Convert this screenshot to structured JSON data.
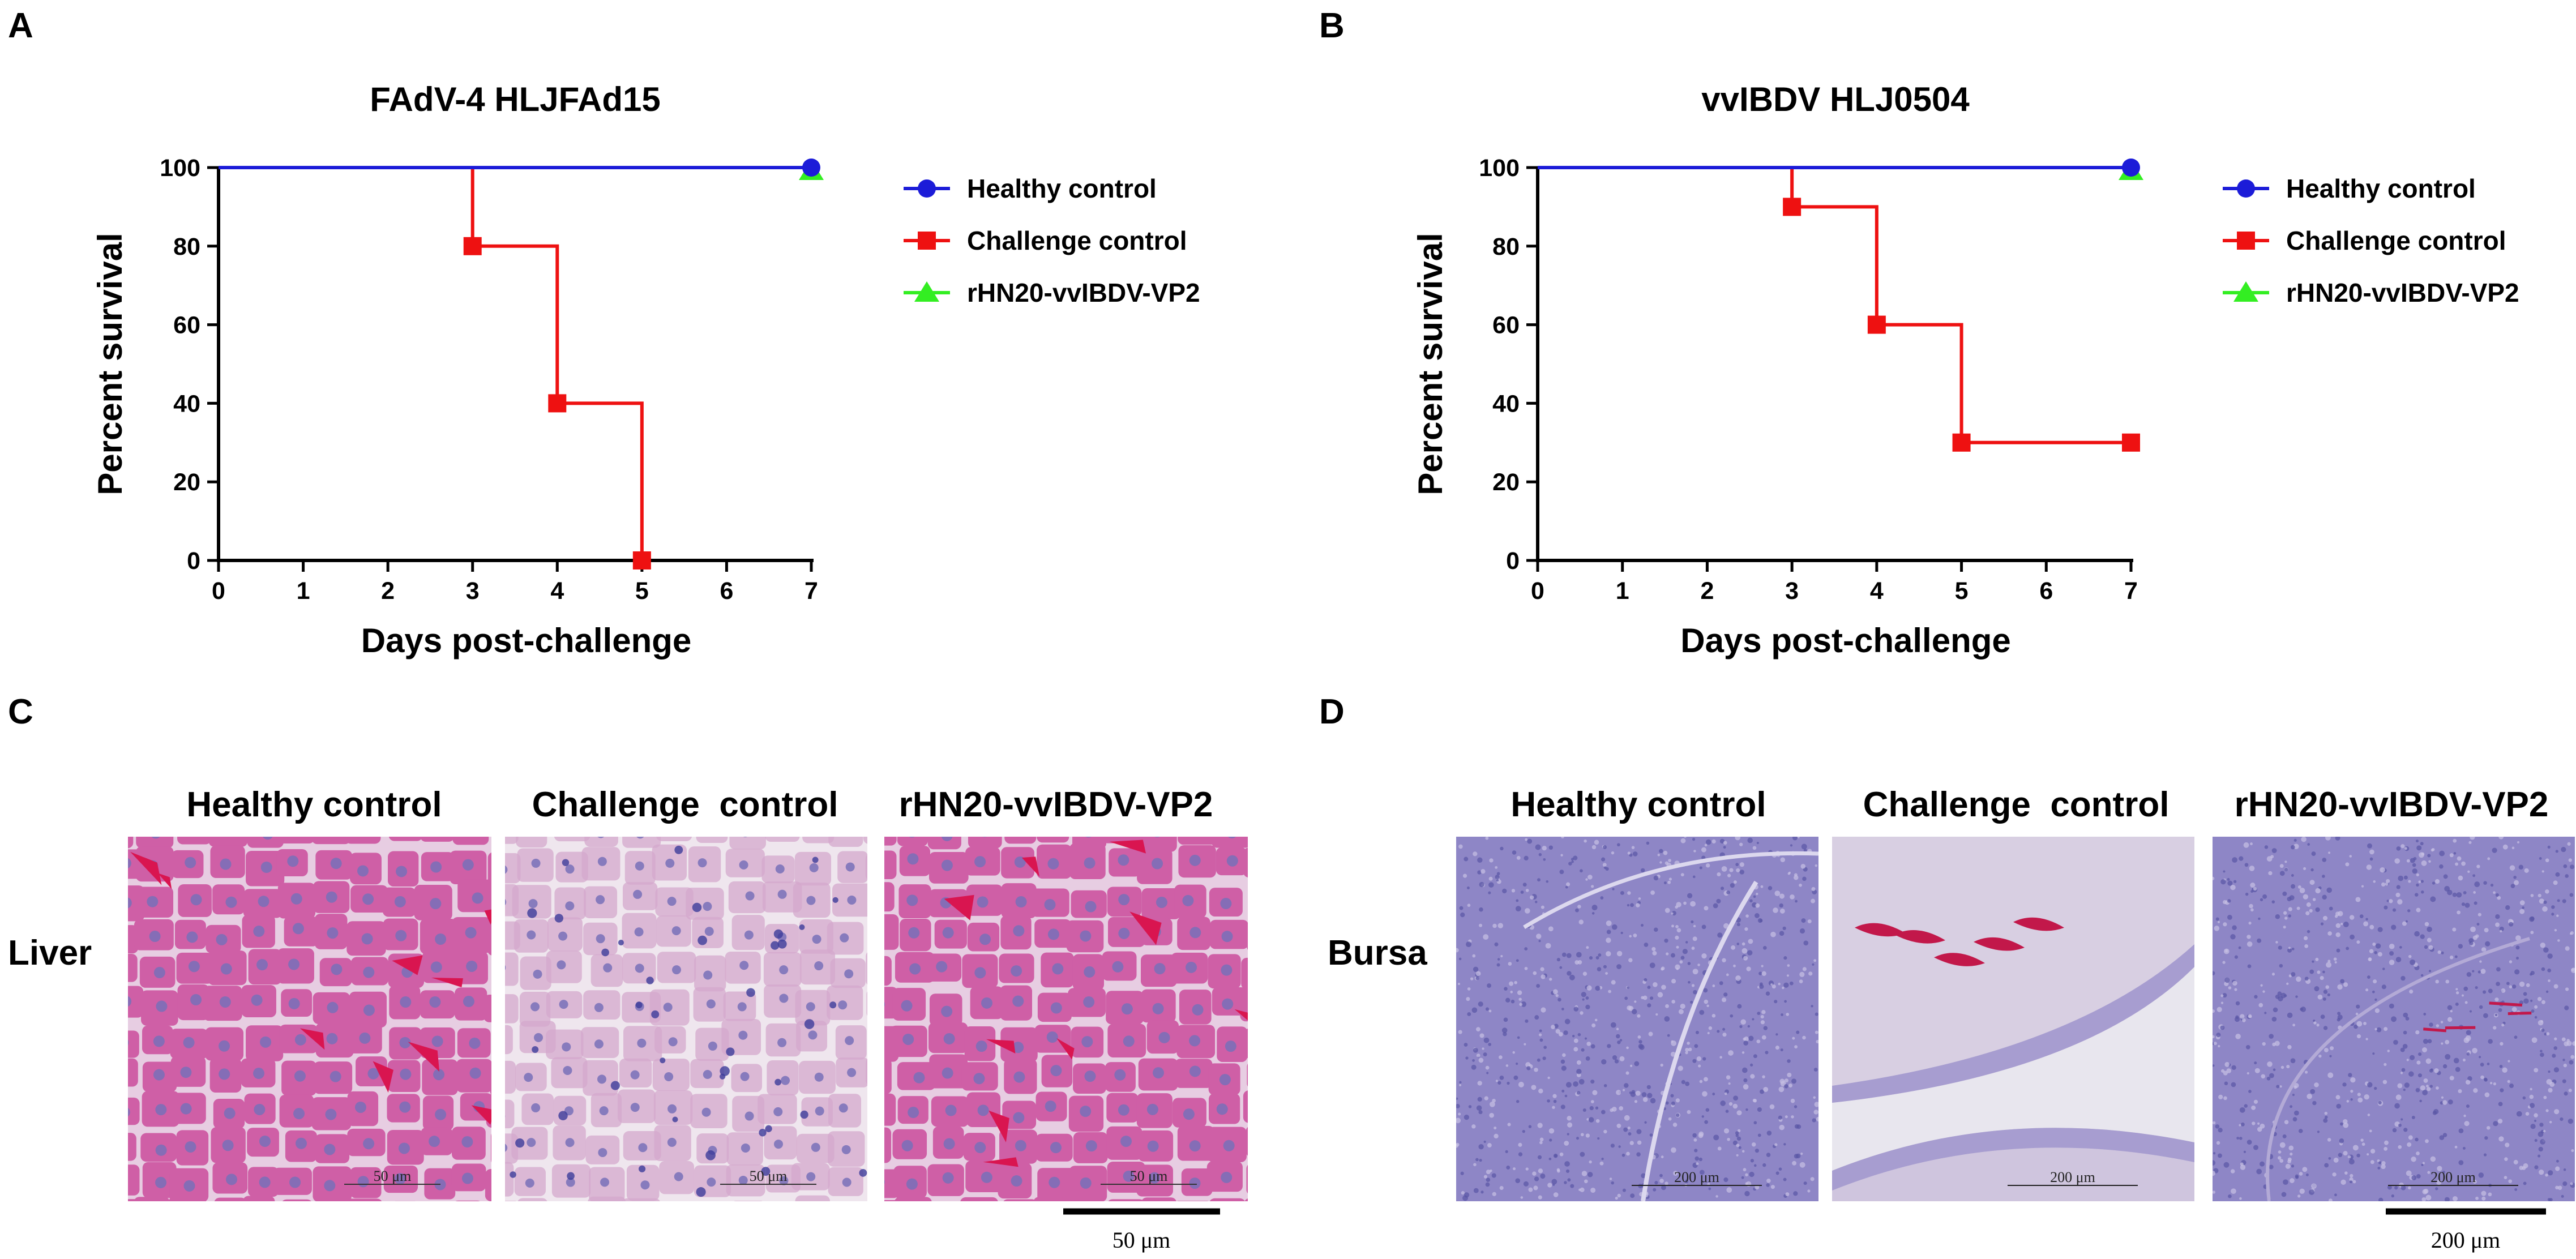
{
  "colors": {
    "healthy": "#1c1cd8",
    "challenge": "#ee1111",
    "vaccine": "#33ee22",
    "liver_base": "#c2549c",
    "liver_healthy_cell": "#cf5fa6",
    "liver_challenge_cell": "#d4a8cc",
    "liver_challenge_bg": "#efe6ee",
    "liver_nucleus": "#7870b8",
    "liver_blood": "#d91550",
    "bursa_base": "#8e86c6",
    "bursa_tissue": "#a79dd0",
    "bursa_challenge_bg": "#e8e6ee",
    "bursa_blood": "#c2184a"
  },
  "chart_data": [
    {
      "panel": "A",
      "type": "line",
      "step": true,
      "title": "FAdV-4 HLJFAd15",
      "xlabel": "Days post-challenge",
      "ylabel": "Percent survival",
      "xlim": [
        0,
        7
      ],
      "ylim": [
        0,
        100
      ],
      "xticks": [
        "0",
        "1",
        "2",
        "3",
        "4",
        "5",
        "6",
        "7"
      ],
      "yticks": [
        "0",
        "20",
        "40",
        "60",
        "80",
        "100"
      ],
      "legend_position": "right",
      "series": [
        {
          "name": "Healthy control",
          "marker": "circle",
          "color": "#1c1cd8",
          "x": [
            0,
            7
          ],
          "y": [
            100,
            100
          ],
          "marker_x": [
            7
          ],
          "marker_y": [
            100
          ]
        },
        {
          "name": "Challenge control",
          "marker": "square",
          "color": "#ee1111",
          "x": [
            0,
            3,
            4,
            5
          ],
          "y": [
            100,
            80,
            40,
            0
          ],
          "marker_x": [
            3,
            4,
            5
          ],
          "marker_y": [
            80,
            40,
            0
          ]
        },
        {
          "name": "rHN20-vvIBDV-VP2",
          "marker": "triangle",
          "color": "#33ee22",
          "x": [
            0,
            7
          ],
          "y": [
            100,
            100
          ],
          "marker_x": [
            7
          ],
          "marker_y": [
            100
          ]
        }
      ]
    },
    {
      "panel": "B",
      "type": "line",
      "step": true,
      "title": "vvIBDV HLJ0504",
      "xlabel": "Days post-challenge",
      "ylabel": "Percent survival",
      "xlim": [
        0,
        7
      ],
      "ylim": [
        0,
        100
      ],
      "xticks": [
        "0",
        "1",
        "2",
        "3",
        "4",
        "5",
        "6",
        "7"
      ],
      "yticks": [
        "0",
        "20",
        "40",
        "60",
        "80",
        "100"
      ],
      "legend_position": "right",
      "series": [
        {
          "name": "Healthy control",
          "marker": "circle",
          "color": "#1c1cd8",
          "x": [
            0,
            7
          ],
          "y": [
            100,
            100
          ],
          "marker_x": [
            7
          ],
          "marker_y": [
            100
          ]
        },
        {
          "name": "Challenge control",
          "marker": "square",
          "color": "#ee1111",
          "x": [
            0,
            3,
            4,
            5,
            7
          ],
          "y": [
            100,
            90,
            60,
            30,
            30
          ],
          "marker_x": [
            3,
            4,
            5,
            7
          ],
          "marker_y": [
            90,
            60,
            30,
            30
          ]
        },
        {
          "name": "rHN20-vvIBDV-VP2",
          "marker": "triangle",
          "color": "#33ee22",
          "x": [
            0,
            7
          ],
          "y": [
            100,
            100
          ],
          "marker_x": [
            7
          ],
          "marker_y": [
            100
          ]
        }
      ]
    }
  ],
  "histology": {
    "C": {
      "letter": "C",
      "row_label": "Liver",
      "columns": [
        "Healthy control",
        "Challenge  control",
        "rHN20-vvIBDV-VP2"
      ],
      "inner_scale_label": "50 μm",
      "scale_bar_label": "50 μm"
    },
    "D": {
      "letter": "D",
      "row_label": "Bursa",
      "columns": [
        "Healthy control",
        "Challenge  control",
        "rHN20-vvIBDV-VP2"
      ],
      "inner_scale_label": "200 μm",
      "scale_bar_label": "200 μm"
    }
  }
}
